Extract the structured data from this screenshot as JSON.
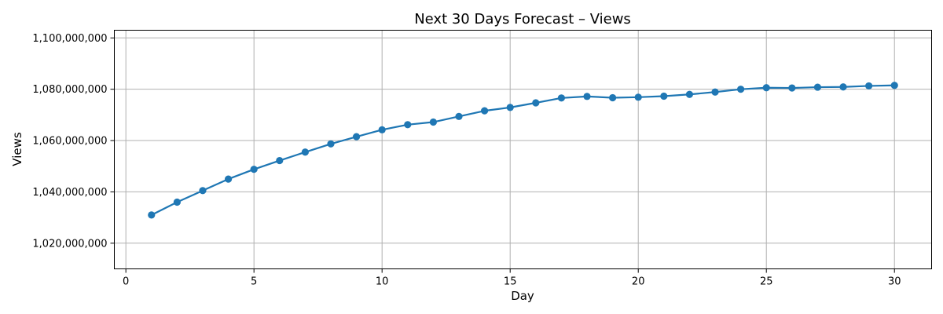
{
  "chart_data": {
    "type": "line",
    "title": "Next 30 Days Forecast – Views",
    "xlabel": "Day",
    "ylabel": "Views",
    "xlim": [
      -0.45,
      31.45
    ],
    "ylim": [
      1010000000,
      1103000000
    ],
    "xticks": [
      0,
      5,
      10,
      15,
      20,
      25,
      30
    ],
    "yticks": [
      1020000000,
      1040000000,
      1060000000,
      1080000000,
      1100000000
    ],
    "ytick_labels": [
      "1,020,000,000",
      "1,040,000,000",
      "1,060,000,000",
      "1,080,000,000",
      "1,100,000,000"
    ],
    "grid": true,
    "series_color": "#1f77b4",
    "x": [
      1,
      2,
      3,
      4,
      5,
      6,
      7,
      8,
      9,
      10,
      11,
      12,
      13,
      14,
      15,
      16,
      17,
      18,
      19,
      20,
      21,
      22,
      23,
      24,
      25,
      26,
      27,
      28,
      29,
      30
    ],
    "values": [
      1031000000,
      1036000000,
      1040500000,
      1045000000,
      1048800000,
      1052200000,
      1055500000,
      1058700000,
      1061500000,
      1064200000,
      1066200000,
      1067200000,
      1069400000,
      1071600000,
      1072900000,
      1074700000,
      1076600000,
      1077200000,
      1076700000,
      1076900000,
      1077300000,
      1078000000,
      1078900000,
      1080000000,
      1080600000,
      1080500000,
      1080800000,
      1080900000,
      1081300000,
      1081500000
    ]
  }
}
